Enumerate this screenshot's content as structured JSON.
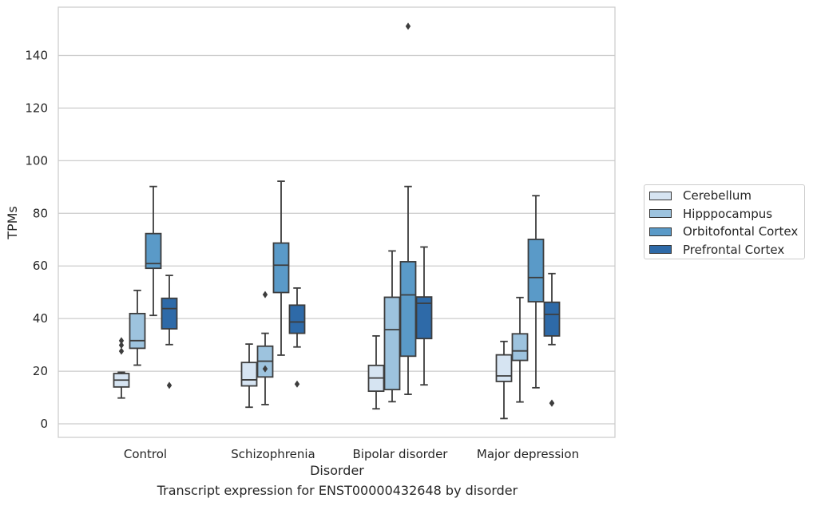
{
  "chart_data": {
    "type": "box",
    "title": "",
    "caption": "Transcript expression for ENST00000432648 by disorder",
    "xlabel": "Disorder",
    "ylabel": "TPMs",
    "ylim": [
      -5,
      165
    ],
    "yticks": [
      0,
      20,
      40,
      60,
      80,
      100,
      120,
      140
    ],
    "grid": "horizontal",
    "legend_position": "right",
    "categories": [
      "Control",
      "Schizophrenia",
      "Bipolar disorder",
      "Major depression"
    ],
    "series": [
      {
        "name": "Cerebellum",
        "color": "#d6e4f2",
        "boxes": [
          {
            "whislo": 9.8,
            "q1": 14,
            "med": 16.6,
            "q3": 19.1,
            "whishi": 19.6,
            "fliers": [
              27.6,
              29.9,
              31.6
            ]
          },
          {
            "whislo": 6.3,
            "q1": 14.4,
            "med": 16.7,
            "q3": 23.3,
            "whishi": 30.3,
            "fliers": []
          },
          {
            "whislo": 5.7,
            "q1": 12.4,
            "med": 17.4,
            "q3": 22.2,
            "whishi": 33.4,
            "fliers": []
          },
          {
            "whislo": 2,
            "q1": 16.1,
            "med": 18.2,
            "q3": 26.2,
            "whishi": 31.3,
            "fliers": []
          }
        ]
      },
      {
        "name": "Hipppocampus",
        "color": "#9dc3de",
        "boxes": [
          {
            "whislo": 22.3,
            "q1": 28.7,
            "med": 31.6,
            "q3": 41.9,
            "whishi": 50.7,
            "fliers": []
          },
          {
            "whislo": 7.3,
            "q1": 17.8,
            "med": 23.8,
            "q3": 29.5,
            "whishi": 34.4,
            "fliers": [
              49.1,
              20.9
            ]
          },
          {
            "whislo": 8.4,
            "q1": 13,
            "med": 35.8,
            "q3": 48.1,
            "whishi": 65.7,
            "fliers": []
          },
          {
            "whislo": 8.3,
            "q1": 24.1,
            "med": 27.7,
            "q3": 34.2,
            "whishi": 48,
            "fliers": []
          }
        ]
      },
      {
        "name": "Orbitofontal Cortex",
        "color": "#5a9ac8",
        "boxes": [
          {
            "whislo": 41.2,
            "q1": 59.1,
            "med": 60.9,
            "q3": 72.3,
            "whishi": 90.2,
            "fliers": []
          },
          {
            "whislo": 26.1,
            "q1": 49.9,
            "med": 60.3,
            "q3": 68.7,
            "whishi": 92.2,
            "fliers": []
          },
          {
            "whislo": 11.2,
            "q1": 25.7,
            "med": 49,
            "q3": 61.6,
            "whishi": 90.2,
            "fliers": [
              151.1
            ]
          },
          {
            "whislo": 13.7,
            "q1": 46.4,
            "med": 55.6,
            "q3": 70.1,
            "whishi": 86.7,
            "fliers": []
          }
        ]
      },
      {
        "name": "Prefrontal Cortex",
        "color": "#2e6aa8",
        "boxes": [
          {
            "whislo": 30.1,
            "q1": 36.1,
            "med": 43.8,
            "q3": 47.7,
            "whishi": 56.4,
            "fliers": [
              14.6
            ]
          },
          {
            "whislo": 29.2,
            "q1": 34.4,
            "med": 38.7,
            "q3": 45.1,
            "whishi": 51.6,
            "fliers": [
              15.1
            ]
          },
          {
            "whislo": 14.8,
            "q1": 32.4,
            "med": 45.8,
            "q3": 48.2,
            "whishi": 67.2,
            "fliers": []
          },
          {
            "whislo": 30.1,
            "q1": 33.4,
            "med": 41.6,
            "q3": 46.2,
            "whishi": 57.1,
            "fliers": [
              7.9,
              7.8
            ]
          }
        ]
      }
    ]
  }
}
